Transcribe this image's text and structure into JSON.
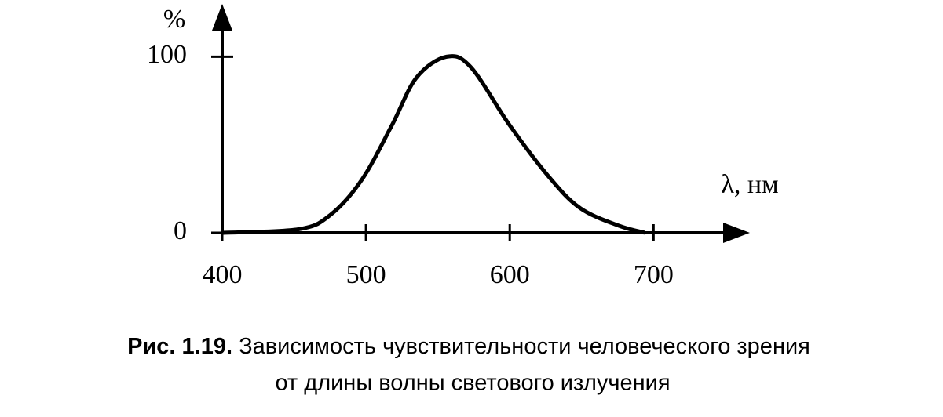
{
  "chart_data": {
    "type": "line",
    "y_label": "%",
    "x_label": "λ, нм",
    "caption_label": "Рис. 1.19.",
    "caption_lines": [
      "Зависимость чувствительности человеческого зрения",
      "от длины волны светового излучения"
    ],
    "x": [
      400,
      453,
      475,
      497,
      518,
      535,
      556,
      573,
      600,
      627,
      649,
      676,
      694
    ],
    "series": [
      {
        "color": "#000000",
        "values": [
          0,
          2,
          10,
          30,
          61,
          88,
          100,
          94,
          61,
          32,
          14,
          4,
          0
        ]
      }
    ],
    "xlim": [
      400,
      767
    ],
    "xticks": [
      400,
      500,
      600,
      700
    ],
    "ylim": [
      0,
      130
    ],
    "yticks": [
      0,
      100
    ]
  }
}
